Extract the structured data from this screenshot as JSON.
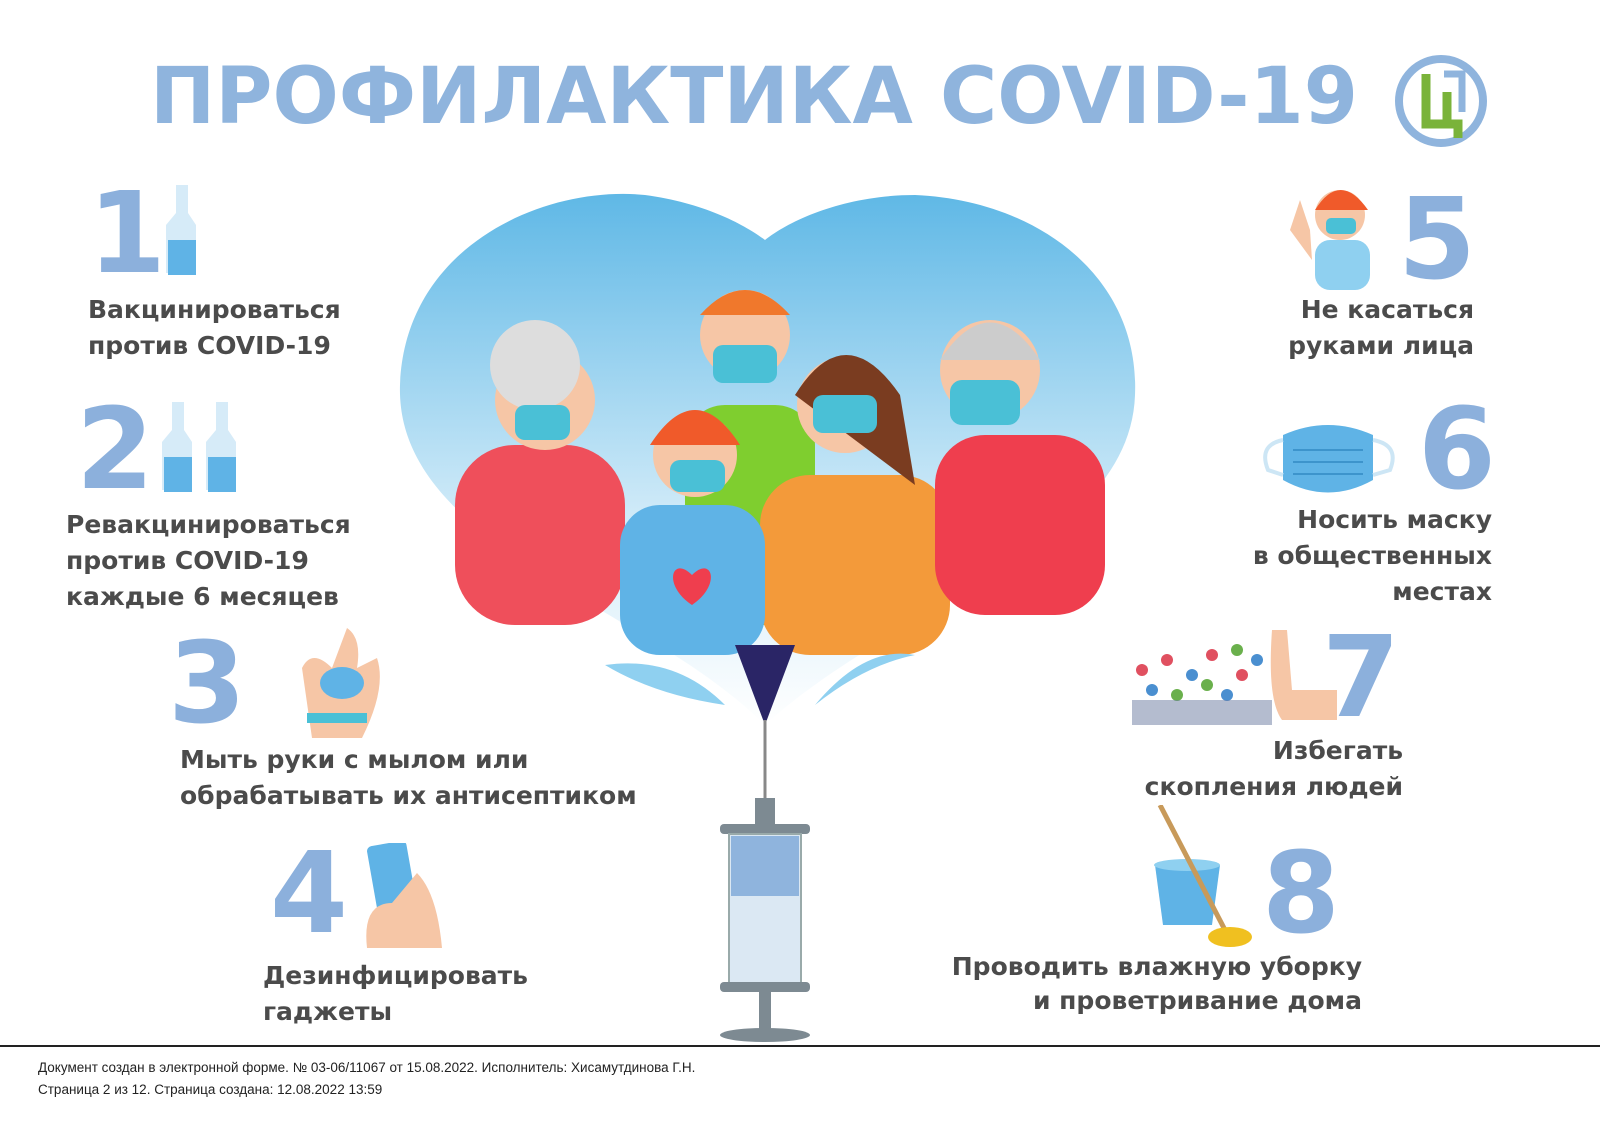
{
  "title": "ПРОФИЛАКТИКА COVID-19",
  "logo": {
    "letter": "Ц",
    "ring_color": "#8fb4dd",
    "letter_color": "#7ab33a"
  },
  "colors": {
    "title": "#8fb4dd",
    "number": "#8cb0dc",
    "text": "#4b4b4b"
  },
  "steps": [
    {
      "number": "1",
      "lines": [
        "Вакцинироваться",
        "против COVID-19"
      ],
      "icon": "vaccine-vial-icon"
    },
    {
      "number": "2",
      "lines": [
        "Ревакцинироваться",
        "против COVID-19",
        "каждые 6 месяцев"
      ],
      "icon": "two-vials-icon"
    },
    {
      "number": "3",
      "lines": [
        "Мыть руки с мылом или",
        "обрабатывать их антисептиком"
      ],
      "icon": "hand-washing-icon"
    },
    {
      "number": "4",
      "lines": [
        "Дезинфицировать",
        "гаджеты"
      ],
      "icon": "smartphone-hand-icon"
    },
    {
      "number": "5",
      "lines": [
        "Не касаться",
        "руками лица"
      ],
      "icon": "girl-touching-face-icon"
    },
    {
      "number": "6",
      "lines": [
        "Носить маску",
        "в общественных",
        "местах"
      ],
      "icon": "face-mask-icon"
    },
    {
      "number": "7",
      "lines": [
        "Избегать",
        "скопления людей"
      ],
      "icon": "crowd-stop-icon"
    },
    {
      "number": "8",
      "lines": [
        "Проводить влажную уборку",
        "и проветривание дома"
      ],
      "icon": "bucket-mop-icon"
    }
  ],
  "footer": {
    "line1": "Документ создан в электронной форме. № 03-06/11067 от 15.08.2022. Исполнитель: Хисамутдинова Г.Н.",
    "line2": "Страница 2 из 12. Страница создана: 12.08.2022 13:59"
  }
}
